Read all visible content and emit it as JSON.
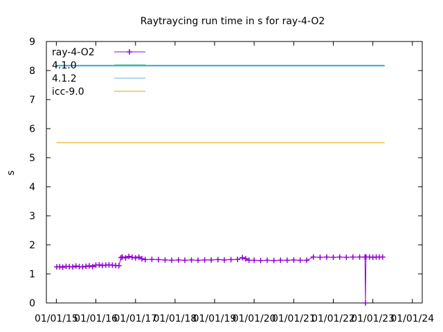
{
  "chart_data": {
    "type": "line",
    "title": "Raytraycing run time in s for ray-4-O2",
    "xlabel": "",
    "ylabel": "s",
    "x_is_date": true,
    "xlim": [
      "2014-10-01",
      "2024-04-01"
    ],
    "ylim": [
      0,
      9
    ],
    "y_ticks": [
      0,
      1,
      2,
      3,
      4,
      5,
      6,
      7,
      8,
      9
    ],
    "x_ticks": [
      {
        "date": "2015-01-01",
        "label": "01/01/15"
      },
      {
        "date": "2016-01-01",
        "label": "01/01/16"
      },
      {
        "date": "2017-01-01",
        "label": "01/01/17"
      },
      {
        "date": "2018-01-01",
        "label": "01/01/18"
      },
      {
        "date": "2019-01-01",
        "label": "01/01/19"
      },
      {
        "date": "2020-01-01",
        "label": "01/01/20"
      },
      {
        "date": "2021-01-01",
        "label": "01/01/21"
      },
      {
        "date": "2022-01-01",
        "label": "01/01/22"
      },
      {
        "date": "2023-01-01",
        "label": "01/01/23"
      },
      {
        "date": "2024-01-01",
        "label": "01/01/24"
      }
    ],
    "grid": false,
    "legend_position": "top-left",
    "series": [
      {
        "name": "ray-4-O2",
        "color": "#9400d3",
        "marker": "plus",
        "points": [
          [
            "2015-01-05",
            1.24
          ],
          [
            "2015-02-01",
            1.25
          ],
          [
            "2015-03-01",
            1.23
          ],
          [
            "2015-04-01",
            1.26
          ],
          [
            "2015-05-01",
            1.25
          ],
          [
            "2015-06-01",
            1.24
          ],
          [
            "2015-07-01",
            1.27
          ],
          [
            "2015-08-01",
            1.25
          ],
          [
            "2015-09-01",
            1.24
          ],
          [
            "2015-10-01",
            1.26
          ],
          [
            "2015-11-01",
            1.28
          ],
          [
            "2015-12-01",
            1.25
          ],
          [
            "2016-01-01",
            1.3
          ],
          [
            "2016-02-01",
            1.31
          ],
          [
            "2016-03-01",
            1.29
          ],
          [
            "2016-04-01",
            1.3
          ],
          [
            "2016-05-01",
            1.31
          ],
          [
            "2016-06-01",
            1.3
          ],
          [
            "2016-07-01",
            1.29
          ],
          [
            "2016-08-01",
            1.28
          ],
          [
            "2016-08-20",
            1.56
          ],
          [
            "2016-09-01",
            1.58
          ],
          [
            "2016-10-01",
            1.55
          ],
          [
            "2016-11-01",
            1.6
          ],
          [
            "2016-12-01",
            1.57
          ],
          [
            "2017-01-01",
            1.55
          ],
          [
            "2017-02-01",
            1.58
          ],
          [
            "2017-03-01",
            1.52
          ],
          [
            "2017-04-01",
            1.49
          ],
          [
            "2017-06-01",
            1.5
          ],
          [
            "2017-08-01",
            1.49
          ],
          [
            "2017-10-01",
            1.48
          ],
          [
            "2017-12-01",
            1.47
          ],
          [
            "2018-02-01",
            1.48
          ],
          [
            "2018-04-01",
            1.47
          ],
          [
            "2018-06-01",
            1.48
          ],
          [
            "2018-08-01",
            1.47
          ],
          [
            "2018-10-01",
            1.48
          ],
          [
            "2018-12-01",
            1.48
          ],
          [
            "2019-02-01",
            1.49
          ],
          [
            "2019-04-01",
            1.48
          ],
          [
            "2019-06-01",
            1.49
          ],
          [
            "2019-08-01",
            1.5
          ],
          [
            "2019-09-15",
            1.56
          ],
          [
            "2019-10-15",
            1.52
          ],
          [
            "2019-11-15",
            1.47
          ],
          [
            "2020-01-01",
            1.47
          ],
          [
            "2020-03-01",
            1.46
          ],
          [
            "2020-05-01",
            1.47
          ],
          [
            "2020-07-01",
            1.46
          ],
          [
            "2020-09-01",
            1.47
          ],
          [
            "2020-11-01",
            1.47
          ],
          [
            "2021-01-01",
            1.48
          ],
          [
            "2021-03-01",
            1.47
          ],
          [
            "2021-05-01",
            1.47
          ],
          [
            "2021-07-01",
            1.58
          ],
          [
            "2021-09-01",
            1.57
          ],
          [
            "2021-11-01",
            1.58
          ],
          [
            "2022-01-01",
            1.57
          ],
          [
            "2022-03-01",
            1.58
          ],
          [
            "2022-05-01",
            1.57
          ],
          [
            "2022-07-01",
            1.58
          ],
          [
            "2022-09-01",
            1.58
          ],
          [
            "2022-10-20",
            1.58
          ],
          [
            "2022-10-25",
            0.0
          ],
          [
            "2022-10-30",
            1.58
          ],
          [
            "2022-12-01",
            1.58
          ],
          [
            "2023-01-01",
            1.57
          ],
          [
            "2023-02-01",
            1.58
          ],
          [
            "2023-03-01",
            1.58
          ],
          [
            "2023-04-01",
            1.58
          ]
        ]
      },
      {
        "name": "4.1.0",
        "color": "#009e73",
        "marker": "none",
        "points": [
          [
            "2015-01-01",
            8.18
          ],
          [
            "2023-04-20",
            8.18
          ]
        ]
      },
      {
        "name": "4.1.2",
        "color": "#56b4e9",
        "marker": "none",
        "points": [
          [
            "2015-01-01",
            8.15
          ],
          [
            "2023-04-20",
            8.15
          ]
        ]
      },
      {
        "name": "icc-9.0",
        "color": "#e69f00",
        "marker": "none",
        "points": [
          [
            "2015-01-01",
            5.52
          ],
          [
            "2023-04-20",
            5.52
          ]
        ]
      }
    ]
  }
}
